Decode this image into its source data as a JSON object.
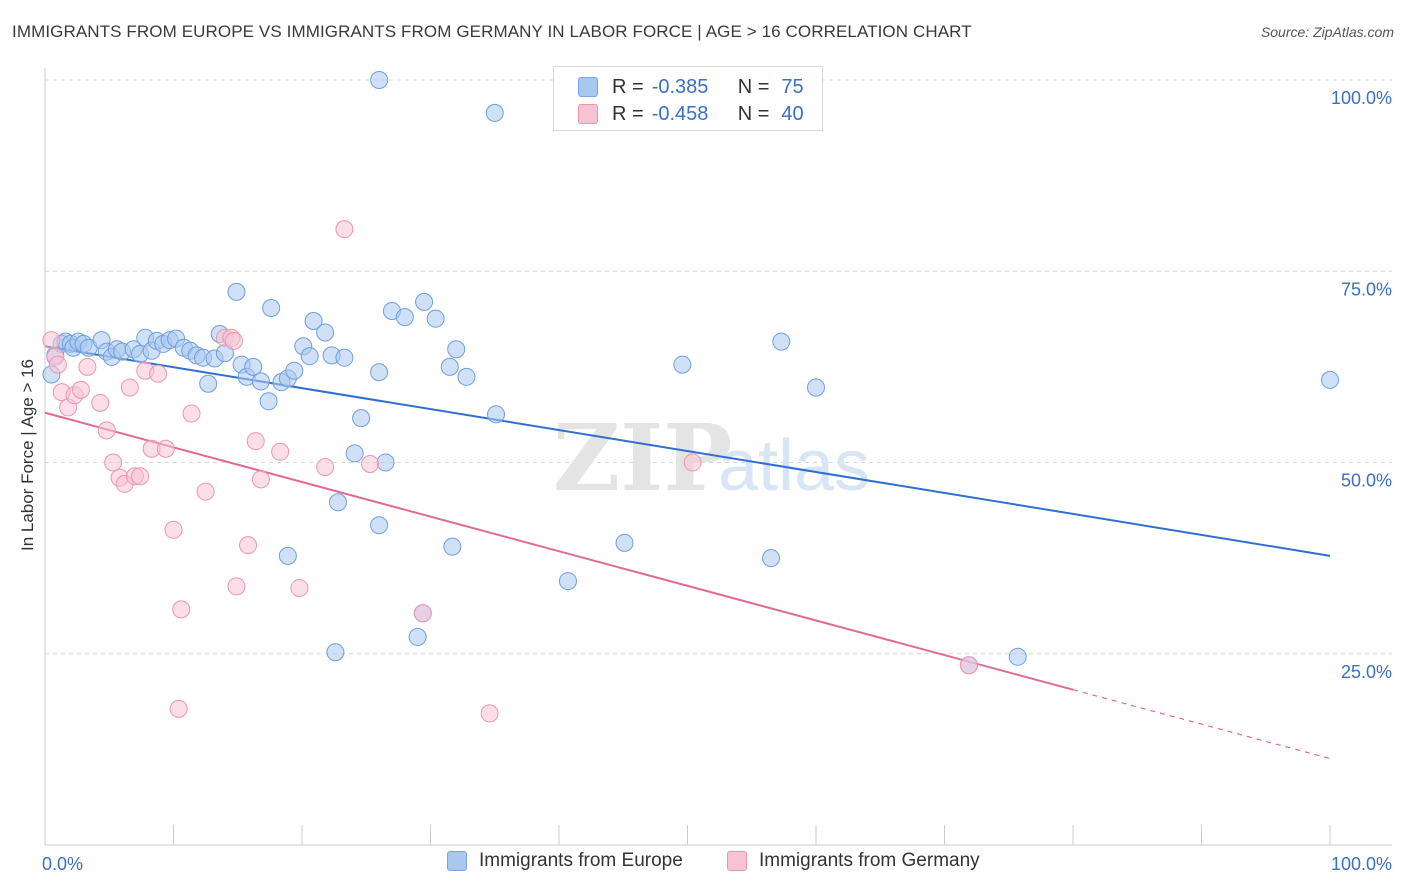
{
  "title": "IMMIGRANTS FROM EUROPE VS IMMIGRANTS FROM GERMANY IN LABOR FORCE | AGE > 16 CORRELATION CHART",
  "source": "Source: ZipAtlas.com",
  "watermark": {
    "zip": "ZIP",
    "atlas": "atlas"
  },
  "legend_stats": [
    {
      "r_label": "R =",
      "r_value": "-0.385",
      "n_label": "N =",
      "n_value": "75",
      "color": "#a9c8f0",
      "border": "#7aa5e0"
    },
    {
      "r_label": "R =",
      "r_value": "-0.458",
      "n_label": "N =",
      "n_value": "40",
      "color": "#f7c3d3",
      "border": "#eb96b1"
    }
  ],
  "chart_data": {
    "type": "scatter",
    "title": "IMMIGRANTS FROM EUROPE VS IMMIGRANTS FROM GERMANY IN LABOR FORCE | AGE > 16 CORRELATION CHART",
    "xlabel": "",
    "ylabel": "In Labor Force | Age > 16",
    "xlim": [
      0,
      100
    ],
    "ylim": [
      0,
      100
    ],
    "x_tick_labels": [
      "0.0%",
      "100.0%"
    ],
    "y_tick_labels": [
      {
        "value": 100,
        "label": "100.0%"
      },
      {
        "value": 75,
        "label": "75.0%"
      },
      {
        "value": 50,
        "label": "50.0%"
      },
      {
        "value": 25,
        "label": "25.0%"
      }
    ],
    "grid": true,
    "legend_position": "bottom",
    "series": [
      {
        "name": "Immigrants from Europe",
        "color": "#a9c8f0",
        "edge": "#6f9fdc",
        "line_color": "#2f6fd1",
        "trend": {
          "x": [
            0,
            100
          ],
          "y": [
            65.2,
            37.8
          ],
          "dashed_from": 100
        },
        "points": [
          [
            0.5,
            61.5
          ],
          [
            0.8,
            64
          ],
          [
            1.3,
            65.5
          ],
          [
            1.6,
            65.8
          ],
          [
            2.0,
            65.5
          ],
          [
            2.2,
            65
          ],
          [
            2.6,
            65.8
          ],
          [
            3.0,
            65.5
          ],
          [
            3.4,
            65
          ],
          [
            4.4,
            66
          ],
          [
            4.8,
            64.5
          ],
          [
            5.2,
            63.8
          ],
          [
            5.6,
            64.8
          ],
          [
            6.0,
            64.5
          ],
          [
            6.9,
            64.8
          ],
          [
            7.4,
            64.2
          ],
          [
            7.8,
            66.3
          ],
          [
            8.3,
            64.6
          ],
          [
            8.7,
            65.9
          ],
          [
            9.2,
            65.5
          ],
          [
            9.7,
            66
          ],
          [
            10.2,
            66.2
          ],
          [
            10.8,
            65
          ],
          [
            11.3,
            64.6
          ],
          [
            11.8,
            64
          ],
          [
            12.3,
            63.7
          ],
          [
            12.7,
            60.3
          ],
          [
            13.2,
            63.6
          ],
          [
            13.6,
            66.8
          ],
          [
            14.0,
            64.3
          ],
          [
            14.9,
            72.3
          ],
          [
            15.3,
            62.8
          ],
          [
            15.7,
            61.2
          ],
          [
            16.2,
            62.5
          ],
          [
            16.8,
            60.6
          ],
          [
            17.4,
            58
          ],
          [
            17.6,
            70.2
          ],
          [
            18.4,
            60.5
          ],
          [
            18.9,
            61
          ],
          [
            19.4,
            62
          ],
          [
            20.1,
            65.2
          ],
          [
            20.6,
            63.9
          ],
          [
            20.9,
            68.5
          ],
          [
            21.8,
            67
          ],
          [
            22.3,
            64
          ],
          [
            23.3,
            63.7
          ],
          [
            24.1,
            51.2
          ],
          [
            24.6,
            55.8
          ],
          [
            26.0,
            61.8
          ],
          [
            26.5,
            50
          ],
          [
            27.0,
            69.8
          ],
          [
            28.0,
            69
          ],
          [
            29.5,
            71
          ],
          [
            30.4,
            68.8
          ],
          [
            31.5,
            62.5
          ],
          [
            32.0,
            64.8
          ],
          [
            32.8,
            61.2
          ],
          [
            35.1,
            56.3
          ],
          [
            49.6,
            62.8
          ],
          [
            57.3,
            65.8
          ],
          [
            60.0,
            59.8
          ],
          [
            100.0,
            60.8
          ],
          [
            26.0,
            100
          ],
          [
            35.0,
            95.7
          ],
          [
            22.8,
            44.8
          ],
          [
            26.0,
            41.8
          ],
          [
            18.9,
            37.8
          ],
          [
            31.7,
            39
          ],
          [
            45.1,
            39.5
          ],
          [
            56.5,
            37.5
          ],
          [
            40.7,
            34.5
          ],
          [
            29.4,
            30.3
          ],
          [
            29.0,
            27.2
          ],
          [
            22.6,
            25.2
          ],
          [
            75.7,
            24.6
          ],
          [
            71.9,
            23.5
          ]
        ]
      },
      {
        "name": "Immigrants from Germany",
        "color": "#f7c3d3",
        "edge": "#eb96b1",
        "line_color": "#e06a96",
        "trend": {
          "x": [
            0,
            80
          ],
          "y": [
            56.5,
            20.3
          ],
          "dashed_to": 100,
          "y_at_100": 11.3
        },
        "points": [
          [
            0.5,
            66
          ],
          [
            0.8,
            63.8
          ],
          [
            1.0,
            62.8
          ],
          [
            1.3,
            59.2
          ],
          [
            1.8,
            57.2
          ],
          [
            2.3,
            58.8
          ],
          [
            2.8,
            59.5
          ],
          [
            3.3,
            62.5
          ],
          [
            4.3,
            57.8
          ],
          [
            4.8,
            54.2
          ],
          [
            5.3,
            50
          ],
          [
            5.8,
            48
          ],
          [
            6.2,
            47.2
          ],
          [
            6.6,
            59.8
          ],
          [
            7.0,
            48.2
          ],
          [
            7.4,
            48.2
          ],
          [
            7.8,
            62
          ],
          [
            8.3,
            51.8
          ],
          [
            8.8,
            61.6
          ],
          [
            9.4,
            51.8
          ],
          [
            10.0,
            41.2
          ],
          [
            10.6,
            30.8
          ],
          [
            10.4,
            17.8
          ],
          [
            11.4,
            56.4
          ],
          [
            12.5,
            46.2
          ],
          [
            14.0,
            66.3
          ],
          [
            14.5,
            66.3
          ],
          [
            14.7,
            65.9
          ],
          [
            14.9,
            33.8
          ],
          [
            15.8,
            39.2
          ],
          [
            16.4,
            52.8
          ],
          [
            16.8,
            47.8
          ],
          [
            18.3,
            51.4
          ],
          [
            19.8,
            33.6
          ],
          [
            21.8,
            49.4
          ],
          [
            23.3,
            80.5
          ],
          [
            25.3,
            49.8
          ],
          [
            29.4,
            30.3
          ],
          [
            34.6,
            17.2
          ],
          [
            50.4,
            50
          ],
          [
            71.9,
            23.5
          ]
        ]
      }
    ]
  }
}
